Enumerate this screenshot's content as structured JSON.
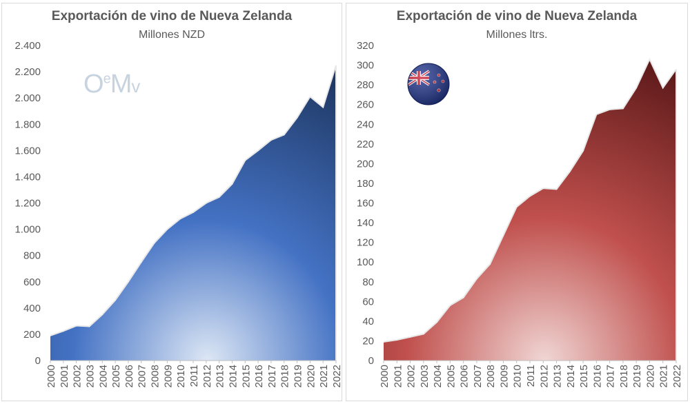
{
  "chart_data": [
    {
      "type": "area",
      "title": "Exportación de vino de Nueva Zelanda",
      "subtitle": "Millones NZD",
      "watermark": "OeMv",
      "color_top": "#1f3864",
      "color_mid": "#4472c4",
      "ylim": [
        0,
        2400
      ],
      "yticks": [
        0,
        200,
        400,
        600,
        800,
        1000,
        1200,
        1400,
        1600,
        1800,
        2000,
        2200,
        2400
      ],
      "ytick_labels": [
        "0",
        "200",
        "400",
        "600",
        "800",
        "1.000",
        "1.200",
        "1.400",
        "1.600",
        "1.800",
        "2.000",
        "2.200",
        "2.400"
      ],
      "categories": [
        "2000",
        "2001",
        "2002",
        "2003",
        "2004",
        "2005",
        "2006",
        "2007",
        "2008",
        "2009",
        "2010",
        "2011",
        "2012",
        "2013",
        "2014",
        "2015",
        "2016",
        "2017",
        "2018",
        "2019",
        "2020",
        "2021",
        "2022"
      ],
      "values": [
        190,
        225,
        265,
        260,
        350,
        460,
        600,
        750,
        895,
        1000,
        1080,
        1130,
        1200,
        1245,
        1345,
        1525,
        1600,
        1680,
        1720,
        1850,
        2010,
        1930,
        2250
      ]
    },
    {
      "type": "area",
      "title": "Exportación de vino de Nueva Zelanda",
      "subtitle": "Millones ltrs.",
      "icon": "new-zealand-flag",
      "color_top": "#5e1a1a",
      "color_mid": "#c0504d",
      "ylim": [
        0,
        320
      ],
      "yticks": [
        0,
        20,
        40,
        60,
        80,
        100,
        120,
        140,
        160,
        180,
        200,
        220,
        240,
        260,
        280,
        300,
        320
      ],
      "ytick_labels": [
        "0",
        "20",
        "40",
        "60",
        "80",
        "100",
        "120",
        "140",
        "160",
        "180",
        "200",
        "220",
        "240",
        "260",
        "280",
        "300",
        "320"
      ],
      "categories": [
        "2000",
        "2001",
        "2002",
        "2003",
        "2004",
        "2005",
        "2006",
        "2007",
        "2008",
        "2009",
        "2010",
        "2011",
        "2012",
        "2013",
        "2014",
        "2015",
        "2016",
        "2017",
        "2018",
        "2019",
        "2020",
        "2021",
        "2022"
      ],
      "values": [
        19,
        21,
        24,
        27,
        39,
        56,
        64,
        83,
        98,
        127,
        156,
        167,
        175,
        174,
        192,
        213,
        250,
        255,
        256,
        277,
        306,
        277,
        296
      ]
    }
  ]
}
